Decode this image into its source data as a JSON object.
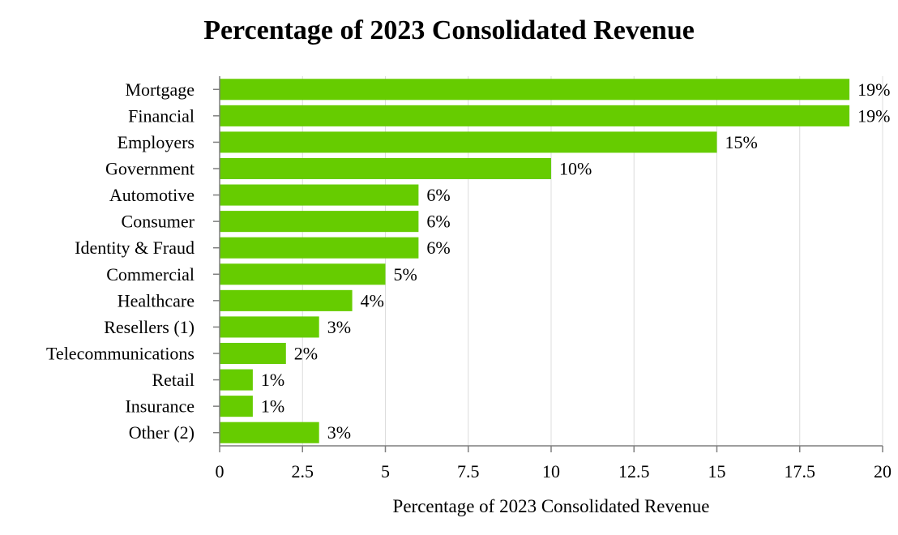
{
  "chart_data": {
    "type": "bar",
    "orientation": "horizontal",
    "title": "Percentage of 2023 Consolidated Revenue",
    "xlabel": "Percentage of 2023 Consolidated Revenue",
    "ylabel": "",
    "xlim": [
      0,
      20
    ],
    "xticks": [
      "0",
      "2.5",
      "5",
      "7.5",
      "10",
      "12.5",
      "15",
      "17.5",
      "20"
    ],
    "xtick_values": [
      0,
      2.5,
      5,
      7.5,
      10,
      12.5,
      15,
      17.5,
      20
    ],
    "grid": true,
    "bar_color": "#66cc00",
    "categories": [
      "Mortgage",
      "Financial",
      "Employers",
      "Government",
      "Automotive",
      "Consumer",
      "Identity & Fraud",
      "Commercial",
      "Healthcare",
      "Resellers (1)",
      "Telecommunications",
      "Retail",
      "Insurance",
      "Other (2)"
    ],
    "values": [
      19,
      19,
      15,
      10,
      6,
      6,
      6,
      5,
      4,
      3,
      2,
      1,
      1,
      3
    ],
    "data_labels": [
      "19%",
      "19%",
      "15%",
      "10%",
      "6%",
      "6%",
      "6%",
      "5%",
      "4%",
      "3%",
      "2%",
      "1%",
      "1%",
      "3%"
    ]
  }
}
